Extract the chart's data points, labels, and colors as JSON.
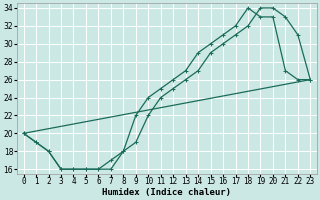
{
  "xlabel": "Humidex (Indice chaleur)",
  "bg_color": "#cce8e4",
  "grid_color": "#ffffff",
  "line_color": "#1a6b5a",
  "xlim": [
    -0.5,
    23.5
  ],
  "ylim": [
    15.5,
    34.5
  ],
  "xticks": [
    0,
    1,
    2,
    3,
    4,
    5,
    6,
    7,
    8,
    9,
    10,
    11,
    12,
    13,
    14,
    15,
    16,
    17,
    18,
    19,
    20,
    21,
    22,
    23
  ],
  "yticks": [
    16,
    18,
    20,
    22,
    24,
    26,
    28,
    30,
    32,
    34
  ],
  "series1_x": [
    0,
    1,
    2,
    3,
    4,
    5,
    6,
    7,
    8,
    9,
    10,
    11,
    12,
    13,
    14,
    15,
    16,
    17,
    18,
    19,
    20,
    21,
    22,
    23
  ],
  "series1_y": [
    20,
    19,
    18,
    16,
    16,
    16,
    16,
    16,
    18,
    19,
    22,
    24,
    25,
    26,
    27,
    29,
    30,
    31,
    32,
    34,
    34,
    33,
    31,
    26
  ],
  "series2_x": [
    0,
    1,
    2,
    3,
    4,
    5,
    6,
    7,
    8,
    9,
    10,
    11,
    12,
    13,
    14,
    15,
    16,
    17,
    18,
    19,
    20,
    21,
    22,
    23
  ],
  "series2_y": [
    20,
    19,
    18,
    16,
    16,
    16,
    16,
    17,
    18,
    22,
    24,
    25,
    26,
    27,
    29,
    30,
    31,
    32,
    34,
    33,
    33,
    27,
    26,
    26
  ],
  "series3_x": [
    0,
    23
  ],
  "series3_y": [
    20,
    26
  ],
  "tick_fontsize": 5.5,
  "xlabel_fontsize": 6.5,
  "lw": 0.9,
  "ms": 2.5
}
